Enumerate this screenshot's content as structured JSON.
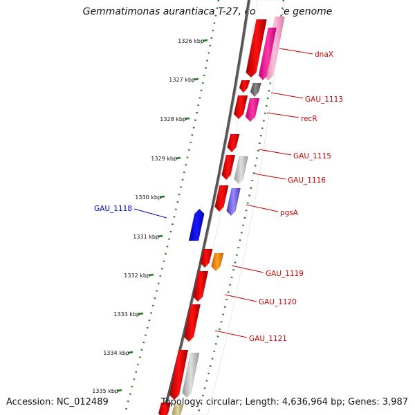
{
  "title": "Gemmatimonas aurantiaca T-27, complete genome",
  "accession_text": "Accession: NC_012489",
  "topology_text": "Topology: circular; Length: 4,636,964 bp; Genes: 3,987",
  "ticks": [
    {
      "label": "1326 kbp"
    },
    {
      "label": "1327 kbp"
    },
    {
      "label": "1328 kbp"
    },
    {
      "label": "1329 kbp"
    },
    {
      "label": "1330 kbp"
    },
    {
      "label": "1331 kbp"
    },
    {
      "label": "1332 kbp"
    },
    {
      "label": "1333 kbp"
    },
    {
      "label": "1334 kbp"
    },
    {
      "label": "1335 kbp"
    }
  ],
  "gene_labels": [
    {
      "name": "dnaX",
      "color": "#cc0000"
    },
    {
      "name": "GAU_1113",
      "color": "#cc0000"
    },
    {
      "name": "recR",
      "color": "#cc0000"
    },
    {
      "name": "GAU_1115",
      "color": "#cc0000"
    },
    {
      "name": "GAU_1116",
      "color": "#cc0000"
    },
    {
      "name": "pgsA",
      "color": "#cc0000"
    },
    {
      "name": "GAU_1118",
      "color": "#0000cc"
    },
    {
      "name": "GAU_1119",
      "color": "#cc0000"
    },
    {
      "name": "GAU_1120",
      "color": "#cc0000"
    },
    {
      "name": "GAU_1121",
      "color": "#cc0000"
    }
  ],
  "colors": {
    "cds": "#ff0000",
    "reverse_cds": "#0000ff",
    "backbone": "#666666",
    "gc_dots": "#1a7a1a",
    "magenta": "#ff2aa0",
    "pink": "#ff99cc",
    "dark_gray": "#666666",
    "light_gray": "#c8c8c8",
    "orange": "#ff8c00",
    "purple": "#7b68ee",
    "olive": "#c8c080"
  }
}
